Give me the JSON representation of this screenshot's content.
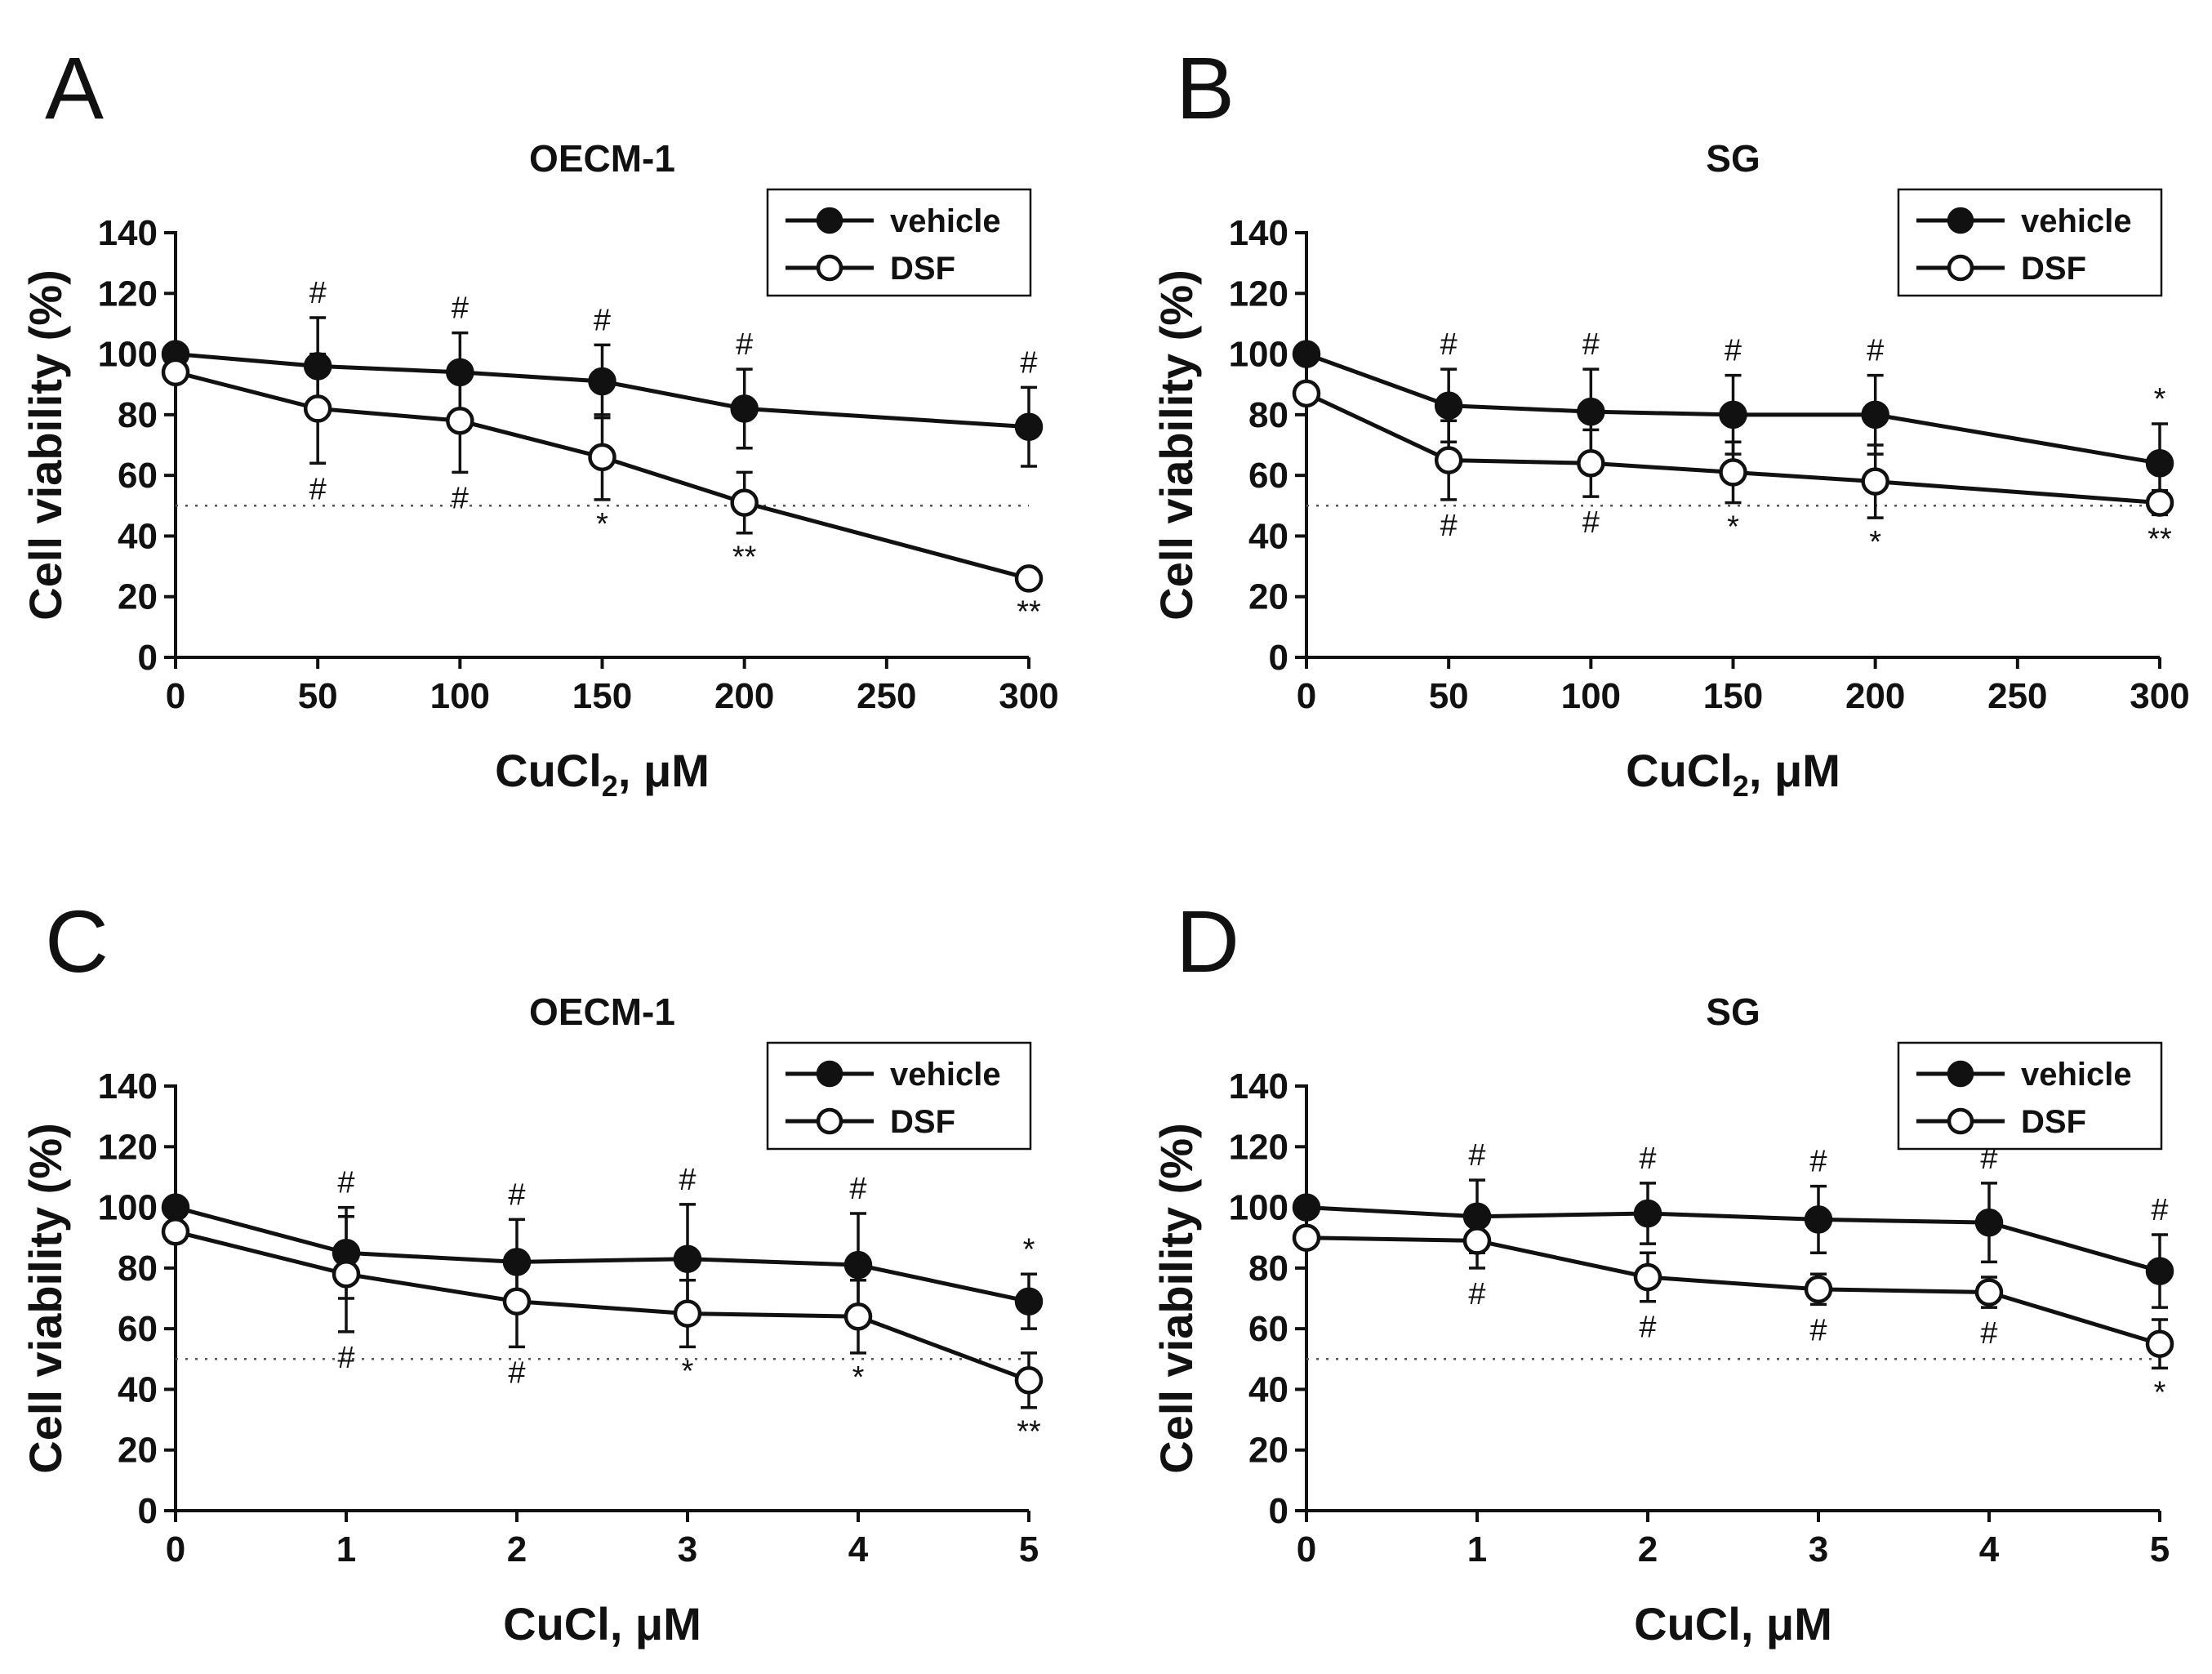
{
  "chart_data": [
    {
      "panel": "A",
      "type": "line",
      "title": "OECM-1",
      "xlabel": {
        "main": "CuCl",
        "sub": "2",
        "rest": ", μM"
      },
      "ylabel": "Cell viability (%)",
      "x_tick_labels": [
        "0",
        "50",
        "100",
        "150",
        "200",
        "250",
        "300"
      ],
      "x_tick_values": [
        0,
        50,
        100,
        150,
        200,
        250,
        300
      ],
      "xlim": [
        0,
        300
      ],
      "ylim": [
        0,
        140
      ],
      "y_ticks": [
        0,
        20,
        40,
        60,
        80,
        100,
        120,
        140
      ],
      "reference_line": 50,
      "legend": {
        "position": "top-right",
        "entries": [
          "vehicle",
          "DSF"
        ]
      },
      "series": [
        {
          "name": "vehicle",
          "marker": "filled",
          "x": [
            0,
            50,
            100,
            150,
            200,
            300
          ],
          "y": [
            100,
            96,
            94,
            91,
            82,
            76
          ],
          "err": [
            0,
            16,
            13,
            12,
            13,
            13
          ],
          "labels": [
            "",
            "#",
            "#",
            "#",
            "#",
            "#"
          ]
        },
        {
          "name": "DSF",
          "marker": "open",
          "x": [
            0,
            50,
            100,
            150,
            200,
            300
          ],
          "y": [
            94,
            82,
            78,
            66,
            51,
            26
          ],
          "err": [
            0,
            18,
            17,
            14,
            10,
            3
          ],
          "labels": [
            "",
            "#",
            "#",
            "*",
            "**",
            "**"
          ]
        }
      ]
    },
    {
      "panel": "B",
      "type": "line",
      "title": "SG",
      "xlabel": {
        "main": "CuCl",
        "sub": "2",
        "rest": ", μM"
      },
      "ylabel": "Cell viability (%)",
      "x_tick_labels": [
        "0",
        "50",
        "100",
        "150",
        "200",
        "250",
        "300"
      ],
      "x_tick_values": [
        0,
        50,
        100,
        150,
        200,
        250,
        300
      ],
      "xlim": [
        0,
        300
      ],
      "ylim": [
        0,
        140
      ],
      "y_ticks": [
        0,
        20,
        40,
        60,
        80,
        100,
        120,
        140
      ],
      "reference_line": 50,
      "legend": {
        "position": "top-right",
        "entries": [
          "vehicle",
          "DSF"
        ]
      },
      "series": [
        {
          "name": "vehicle",
          "marker": "filled",
          "x": [
            0,
            50,
            100,
            150,
            200,
            300
          ],
          "y": [
            100,
            83,
            81,
            80,
            80,
            64
          ],
          "err": [
            0,
            12,
            14,
            13,
            13,
            13
          ],
          "labels": [
            "",
            "#",
            "#",
            "#",
            "#",
            "*"
          ]
        },
        {
          "name": "DSF",
          "marker": "open",
          "x": [
            0,
            50,
            100,
            150,
            200,
            300
          ],
          "y": [
            87,
            65,
            64,
            61,
            58,
            51
          ],
          "err": [
            0,
            13,
            11,
            10,
            12,
            4
          ],
          "labels": [
            "",
            "#",
            "#",
            "*",
            "*",
            "**"
          ]
        }
      ]
    },
    {
      "panel": "C",
      "type": "line",
      "title": "OECM-1",
      "xlabel": {
        "main": "CuCl",
        "sub": "",
        "rest": ", μM"
      },
      "ylabel": "Cell viability (%)",
      "x_tick_labels": [
        "0",
        "1",
        "2",
        "3",
        "4",
        "5"
      ],
      "x_tick_values": [
        0,
        1,
        2,
        3,
        4,
        5
      ],
      "xlim": [
        0,
        5
      ],
      "ylim": [
        0,
        140
      ],
      "y_ticks": [
        0,
        20,
        40,
        60,
        80,
        100,
        120,
        140
      ],
      "reference_line": 50,
      "legend": {
        "position": "top-right",
        "entries": [
          "vehicle",
          "DSF"
        ]
      },
      "series": [
        {
          "name": "vehicle",
          "marker": "filled",
          "x": [
            0,
            1,
            2,
            3,
            4,
            5
          ],
          "y": [
            100,
            85,
            82,
            83,
            81,
            69
          ],
          "err": [
            0,
            15,
            14,
            18,
            17,
            9
          ],
          "labels": [
            "",
            "#",
            "#",
            "#",
            "#",
            "*"
          ]
        },
        {
          "name": "DSF",
          "marker": "open",
          "x": [
            0,
            1,
            2,
            3,
            4,
            5
          ],
          "y": [
            92,
            78,
            69,
            65,
            64,
            43
          ],
          "err": [
            0,
            19,
            15,
            11,
            12,
            9
          ],
          "labels": [
            "",
            "#",
            "#",
            "*",
            "*",
            "**"
          ]
        }
      ]
    },
    {
      "panel": "D",
      "type": "line",
      "title": "SG",
      "xlabel": {
        "main": "CuCl",
        "sub": "",
        "rest": ", μM"
      },
      "ylabel": "Cell viability (%)",
      "x_tick_labels": [
        "0",
        "1",
        "2",
        "3",
        "4",
        "5"
      ],
      "x_tick_values": [
        0,
        1,
        2,
        3,
        4,
        5
      ],
      "xlim": [
        0,
        5
      ],
      "ylim": [
        0,
        140
      ],
      "y_ticks": [
        0,
        20,
        40,
        60,
        80,
        100,
        120,
        140
      ],
      "reference_line": 50,
      "legend": {
        "position": "top-right",
        "entries": [
          "vehicle",
          "DSF"
        ]
      },
      "series": [
        {
          "name": "vehicle",
          "marker": "filled",
          "x": [
            0,
            1,
            2,
            3,
            4,
            5
          ],
          "y": [
            100,
            97,
            98,
            96,
            95,
            79
          ],
          "err": [
            0,
            12,
            10,
            11,
            13,
            12
          ],
          "labels": [
            "",
            "#",
            "#",
            "#",
            "#",
            "#"
          ]
        },
        {
          "name": "DSF",
          "marker": "open",
          "x": [
            0,
            1,
            2,
            3,
            4,
            5
          ],
          "y": [
            90,
            89,
            77,
            73,
            72,
            55
          ],
          "err": [
            0,
            9,
            8,
            5,
            5,
            8
          ],
          "labels": [
            "",
            "#",
            "#",
            "#",
            "#",
            "*"
          ]
        }
      ]
    }
  ]
}
